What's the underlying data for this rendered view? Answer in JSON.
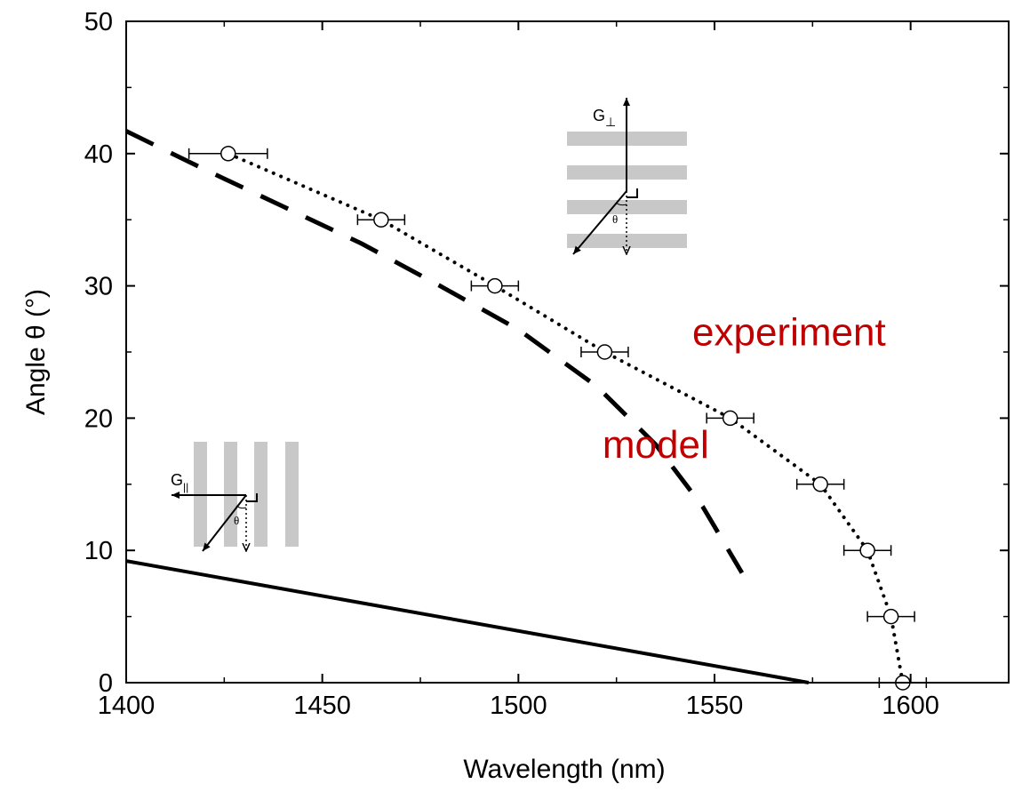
{
  "chart_data": {
    "type": "line",
    "title": "",
    "xlabel": "Wavelength (nm)",
    "ylabel": "Angle θ (°)",
    "xlim": [
      1400,
      1625
    ],
    "ylim": [
      0,
      50
    ],
    "xticks": [
      1400,
      1450,
      1500,
      1550,
      1600
    ],
    "yticks": [
      0,
      10,
      20,
      30,
      40,
      50
    ],
    "grid": false,
    "legend": "none",
    "series": [
      {
        "style": "dotted-markers-errorbars",
        "color": "#000000",
        "x": [
          1598,
          1595,
          1589,
          1577,
          1554,
          1522,
          1494,
          1465,
          1426
        ],
        "y": [
          0,
          5,
          10,
          15,
          20,
          25,
          30,
          35,
          40
        ],
        "xerr": [
          6,
          6,
          6,
          6,
          6,
          6,
          6,
          6,
          10
        ]
      },
      {
        "style": "dashed",
        "color": "#000000",
        "x": [
          1400,
          1420,
          1440,
          1460,
          1480,
          1500,
          1520,
          1535,
          1547,
          1557
        ],
        "y": [
          41.7,
          38.8,
          36.0,
          33.2,
          30.0,
          26.7,
          22.4,
          18.0,
          13.3,
          8.3
        ]
      },
      {
        "style": "solid",
        "color": "#000000",
        "x": [
          1400,
          1574
        ],
        "y": [
          9.2,
          0
        ]
      }
    ],
    "annotations": [
      {
        "text": "experiment",
        "color": "#c00000",
        "x": 1569,
        "y": 25.5
      },
      {
        "text": "model",
        "color": "#c00000",
        "x": 1535,
        "y": 17.0
      }
    ],
    "insets": {
      "top": {
        "g_label": "G",
        "subscript": "⊥",
        "angle_symbol": "θ"
      },
      "left": {
        "g_label": "G",
        "subscript": "||",
        "angle_symbol": "θ"
      }
    }
  }
}
